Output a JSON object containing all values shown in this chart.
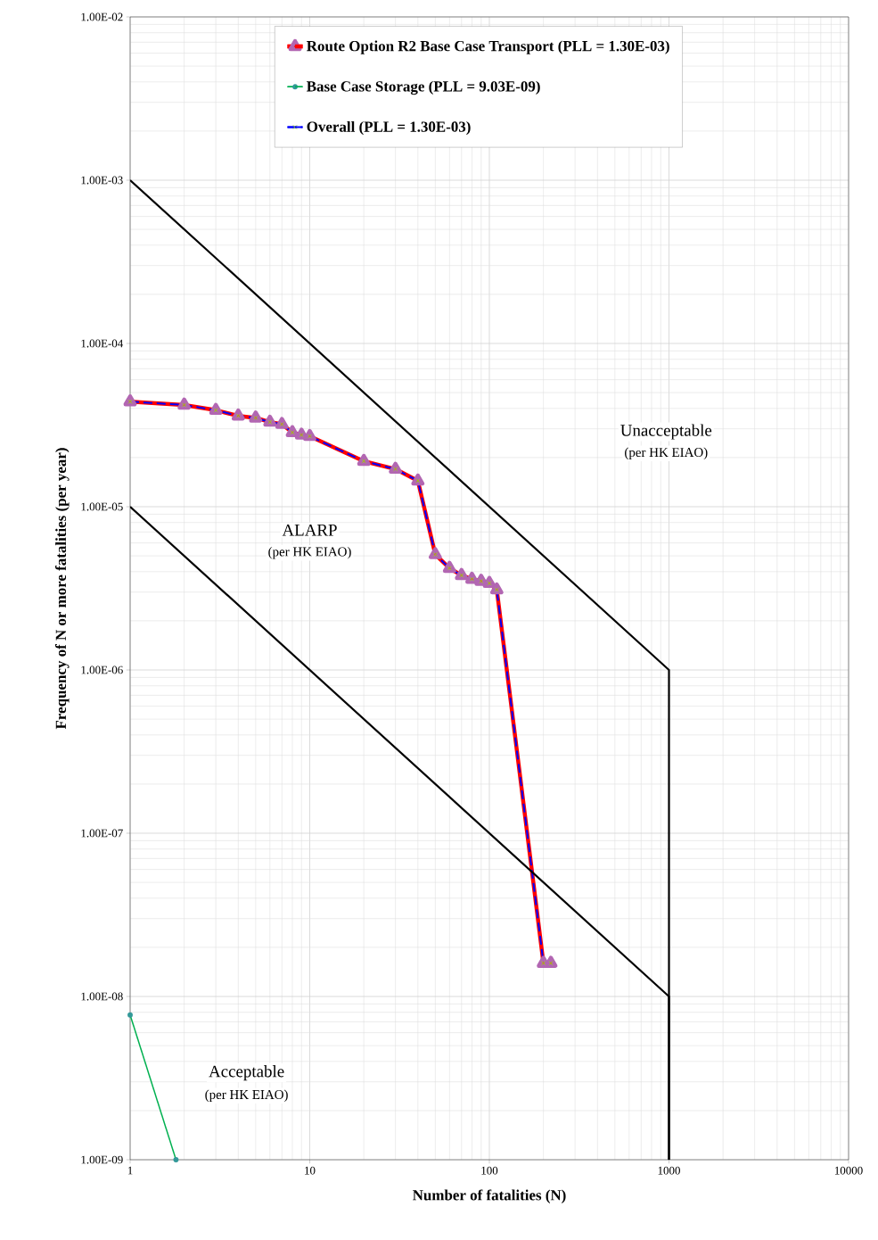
{
  "chart_data": {
    "type": "line",
    "xlabel": "Number of fatalities (N)",
    "ylabel": "Frequency of N or more fatalities (per year)",
    "x": [
      1,
      2,
      3,
      4,
      5,
      6,
      7,
      8,
      9,
      10,
      20,
      30,
      40,
      50,
      60,
      70,
      80,
      90,
      100,
      110,
      200,
      220
    ],
    "series": [
      {
        "name": "Route Option R2 Base Case Transport (PLL = 1.30E-03)",
        "color": "#ff0000",
        "marker": "triangle",
        "values": [
          4.4e-05,
          4.2e-05,
          3.9e-05,
          3.6e-05,
          3.5e-05,
          3.3e-05,
          3.2e-05,
          2.85e-05,
          2.75e-05,
          2.7e-05,
          1.9e-05,
          1.7e-05,
          1.44e-05,
          5.1e-06,
          4.2e-06,
          3.8e-06,
          3.6e-06,
          3.5e-06,
          3.4e-06,
          3.1e-06,
          1.6e-08,
          1.6e-08
        ]
      },
      {
        "name": "Base Case Storage (PLL = 9.03E-09)",
        "color": "#00b050",
        "marker": "circle",
        "x": [
          1,
          1.8
        ],
        "values": [
          7.7e-09,
          1e-09
        ]
      },
      {
        "name": "Overall (PLL = 1.30E-03)",
        "color": "#0000ff",
        "marker": "cross",
        "line_style": "dashed",
        "values": [
          4.4e-05,
          4.2e-05,
          3.9e-05,
          3.6e-05,
          3.5e-05,
          3.3e-05,
          3.2e-05,
          2.85e-05,
          2.75e-05,
          2.7e-05,
          1.9e-05,
          1.7e-05,
          1.44e-05,
          5.1e-06,
          4.2e-06,
          3.8e-06,
          3.6e-06,
          3.5e-06,
          3.4e-06,
          3.1e-06,
          1.6e-08,
          1.6e-08
        ]
      },
      {
        "color": "#000000",
        "marker": "none",
        "x": [
          1,
          1000,
          1000
        ],
        "values": [
          0.001,
          1e-06,
          1e-09
        ]
      },
      {
        "color": "#000000",
        "marker": "none",
        "x": [
          1,
          1000,
          1000
        ],
        "values": [
          1e-05,
          1e-08,
          1e-09
        ]
      }
    ],
    "log": "xy",
    "grid": true,
    "legend": "top",
    "xlim": [
      1,
      10000
    ],
    "xticks": [
      1,
      10,
      100,
      1000,
      10000
    ],
    "ylim": [
      1e-09,
      0.01
    ],
    "yticks": [
      {
        "value": 1e-09,
        "label": "1.00E-09"
      },
      {
        "value": 1e-08,
        "label": "1.00E-08"
      },
      {
        "value": 1e-07,
        "label": "1.00E-07"
      },
      {
        "value": 1e-06,
        "label": "1.00E-06"
      },
      {
        "value": 1e-05,
        "label": "1.00E-05"
      },
      {
        "value": 0.0001,
        "label": "1.00E-04"
      },
      {
        "value": 0.001,
        "label": "1.00E-03"
      },
      {
        "value": 0.01,
        "label": "1.00E-02"
      }
    ],
    "annotations": [
      "Unacceptable",
      "(per HK EIAO)",
      "ALARP",
      "(per HK EIAO)",
      "Acceptable",
      "(per HK EIAO)"
    ]
  }
}
